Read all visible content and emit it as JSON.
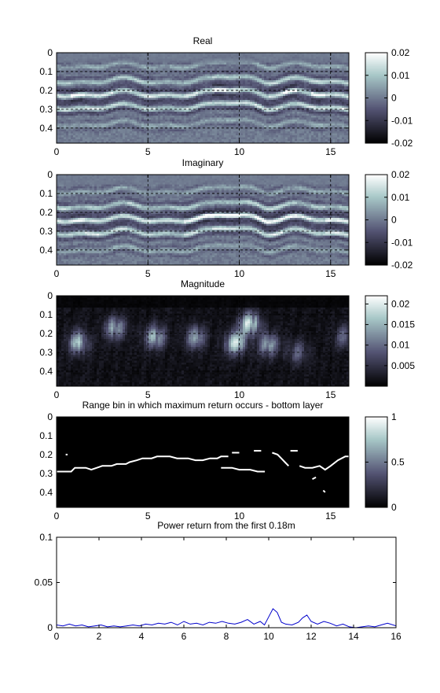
{
  "chart_data": [
    {
      "type": "heatmap",
      "title": "Real",
      "xlim": [
        0,
        16
      ],
      "ylim": [
        0,
        0.48
      ],
      "xticks": [
        "0",
        "5",
        "10",
        "15"
      ],
      "yticks": [
        "0",
        "0.1",
        "0.2",
        "0.3",
        "0.4"
      ],
      "grid": true,
      "colormap": "bone",
      "colorbar": {
        "range": [
          -0.02,
          0.02
        ],
        "ticks": [
          "0.02",
          "0.01",
          "0",
          "-0.01",
          "-0.02"
        ]
      },
      "bands": [
        {
          "depth": 0.07,
          "amplitude": 0.006
        },
        {
          "depth": 0.15,
          "amplitude": 0.012
        },
        {
          "depth": 0.22,
          "amplitude": 0.02
        },
        {
          "depth": 0.29,
          "amplitude": 0.015
        },
        {
          "depth": 0.38,
          "amplitude": 0.006
        }
      ]
    },
    {
      "type": "heatmap",
      "title": "Imaginary",
      "xlim": [
        0,
        16
      ],
      "ylim": [
        0,
        0.48
      ],
      "xticks": [
        "0",
        "5",
        "10",
        "15"
      ],
      "yticks": [
        "0",
        "0.1",
        "0.2",
        "0.3",
        "0.4"
      ],
      "grid": true,
      "colormap": "bone",
      "colorbar": {
        "range": [
          -0.02,
          0.02
        ],
        "ticks": [
          "0.02",
          "0.01",
          "0",
          "-0.01",
          "-0.02"
        ]
      },
      "bands": [
        {
          "depth": 0.07,
          "amplitude": 0.006
        },
        {
          "depth": 0.15,
          "amplitude": 0.012
        },
        {
          "depth": 0.22,
          "amplitude": 0.02
        },
        {
          "depth": 0.29,
          "amplitude": 0.015
        },
        {
          "depth": 0.38,
          "amplitude": 0.006
        }
      ]
    },
    {
      "type": "heatmap",
      "title": "Magnitude",
      "xlim": [
        0,
        16
      ],
      "ylim": [
        0,
        0.48
      ],
      "xticks": [
        "0",
        "5",
        "10",
        "15"
      ],
      "yticks": [
        "0",
        "0.1",
        "0.2",
        "0.3",
        "0.4"
      ],
      "grid": true,
      "colormap": "bone",
      "colorbar": {
        "range": [
          0,
          0.022
        ],
        "ticks": [
          "0.02",
          "0.015",
          "0.01",
          "0.005"
        ]
      },
      "bright_spots": [
        {
          "x": 1.2,
          "depth": 0.25,
          "value": 0.016
        },
        {
          "x": 3.2,
          "depth": 0.17,
          "value": 0.014
        },
        {
          "x": 5.4,
          "depth": 0.22,
          "value": 0.015
        },
        {
          "x": 7.6,
          "depth": 0.22,
          "value": 0.012
        },
        {
          "x": 9.8,
          "depth": 0.25,
          "value": 0.018
        },
        {
          "x": 10.6,
          "depth": 0.15,
          "value": 0.02
        },
        {
          "x": 11.6,
          "depth": 0.26,
          "value": 0.013
        },
        {
          "x": 13.2,
          "depth": 0.3,
          "value": 0.008
        },
        {
          "x": 15.8,
          "depth": 0.22,
          "value": 0.009
        }
      ]
    },
    {
      "type": "heatmap",
      "title": "Range bin in which maximum return occurs - bottom layer",
      "xlim": [
        0,
        16
      ],
      "ylim": [
        0,
        0.48
      ],
      "xticks": [
        "0",
        "5",
        "10",
        "15"
      ],
      "yticks": [
        "0",
        "0.1",
        "0.2",
        "0.3",
        "0.4"
      ],
      "grid": false,
      "colormap": "bone",
      "colorbar": {
        "range": [
          0,
          1
        ],
        "ticks": [
          "1",
          "0.5",
          "0"
        ]
      },
      "trace": [
        [
          0,
          0.29
        ],
        [
          0.8,
          0.29
        ],
        [
          1.0,
          0.27
        ],
        [
          1.6,
          0.27
        ],
        [
          1.9,
          0.28
        ],
        [
          2.2,
          0.27
        ],
        [
          2.5,
          0.26
        ],
        [
          3.0,
          0.26
        ],
        [
          3.3,
          0.25
        ],
        [
          3.8,
          0.25
        ],
        [
          4.0,
          0.24
        ],
        [
          4.4,
          0.23
        ],
        [
          4.7,
          0.22
        ],
        [
          5.2,
          0.22
        ],
        [
          5.5,
          0.21
        ],
        [
          6.2,
          0.21
        ],
        [
          6.6,
          0.22
        ],
        [
          7.2,
          0.22
        ],
        [
          7.6,
          0.23
        ],
        [
          8.0,
          0.23
        ],
        [
          8.4,
          0.22
        ],
        [
          8.8,
          0.22
        ],
        [
          9.0,
          0.21
        ],
        [
          9.4,
          0.21
        ]
      ],
      "trace_extra": [
        [
          [
            9.0,
            0.27
          ],
          [
            9.6,
            0.27
          ],
          [
            10.0,
            0.28
          ],
          [
            10.6,
            0.28
          ],
          [
            11.0,
            0.29
          ],
          [
            11.4,
            0.29
          ]
        ],
        [
          [
            9.6,
            0.19
          ],
          [
            10.0,
            0.19
          ]
        ],
        [
          [
            10.8,
            0.18
          ],
          [
            11.2,
            0.18
          ]
        ],
        [
          [
            11.8,
            0.19
          ],
          [
            12.1,
            0.2
          ],
          [
            12.3,
            0.22
          ],
          [
            12.5,
            0.24
          ],
          [
            12.7,
            0.26
          ]
        ],
        [
          [
            12.8,
            0.18
          ],
          [
            13.2,
            0.18
          ]
        ],
        [
          [
            13.3,
            0.26
          ],
          [
            13.6,
            0.27
          ],
          [
            14.0,
            0.27
          ],
          [
            14.4,
            0.26
          ],
          [
            14.7,
            0.28
          ],
          [
            15.0,
            0.26
          ],
          [
            15.4,
            0.23
          ],
          [
            15.8,
            0.21
          ],
          [
            16.0,
            0.21
          ]
        ],
        [
          [
            14.0,
            0.33
          ],
          [
            14.2,
            0.32
          ]
        ],
        [
          [
            0.5,
            0.2
          ],
          [
            0.6,
            0.2
          ]
        ],
        [
          [
            14.6,
            0.39
          ],
          [
            14.7,
            0.4
          ]
        ]
      ]
    },
    {
      "type": "line",
      "title": "Power return from the first 0.18m",
      "xlim": [
        0,
        16
      ],
      "ylim": [
        0,
        0.1
      ],
      "xticks": [
        "0",
        "2",
        "4",
        "6",
        "8",
        "10",
        "12",
        "14",
        "16"
      ],
      "yticks": [
        "0",
        "0.05",
        "0.1"
      ],
      "grid": false,
      "series_color": "#0000cc",
      "series": [
        {
          "x": [
            0,
            0.3,
            0.6,
            0.9,
            1.2,
            1.5,
            1.8,
            2.1,
            2.4,
            2.7,
            3.0,
            3.3,
            3.6,
            3.9,
            4.2,
            4.5,
            4.8,
            5.1,
            5.4,
            5.7,
            6.0,
            6.3,
            6.6,
            6.9,
            7.2,
            7.5,
            7.8,
            8.1,
            8.4,
            8.7,
            9.0,
            9.3,
            9.6,
            9.8,
            10.0,
            10.2,
            10.4,
            10.6,
            10.8,
            11.1,
            11.4,
            11.6,
            11.8,
            12.0,
            12.3,
            12.6,
            12.9,
            13.2,
            13.5,
            13.8,
            14.1,
            14.4,
            14.7,
            15.0,
            15.3,
            15.6,
            16.0
          ],
          "y": [
            0.003,
            0.002,
            0.004,
            0.002,
            0.003,
            0.001,
            0.002,
            0.003,
            0.001,
            0.002,
            0.001,
            0.002,
            0.003,
            0.002,
            0.004,
            0.003,
            0.005,
            0.004,
            0.006,
            0.003,
            0.007,
            0.004,
            0.005,
            0.003,
            0.006,
            0.005,
            0.007,
            0.005,
            0.004,
            0.006,
            0.009,
            0.004,
            0.007,
            0.003,
            0.012,
            0.021,
            0.017,
            0.006,
            0.004,
            0.003,
            0.006,
            0.011,
            0.014,
            0.007,
            0.004,
            0.007,
            0.005,
            0.002,
            0.004,
            0.001,
            0.0,
            0.001,
            0.002,
            0.001,
            0.003,
            0.005,
            0.002
          ]
        }
      ]
    }
  ]
}
